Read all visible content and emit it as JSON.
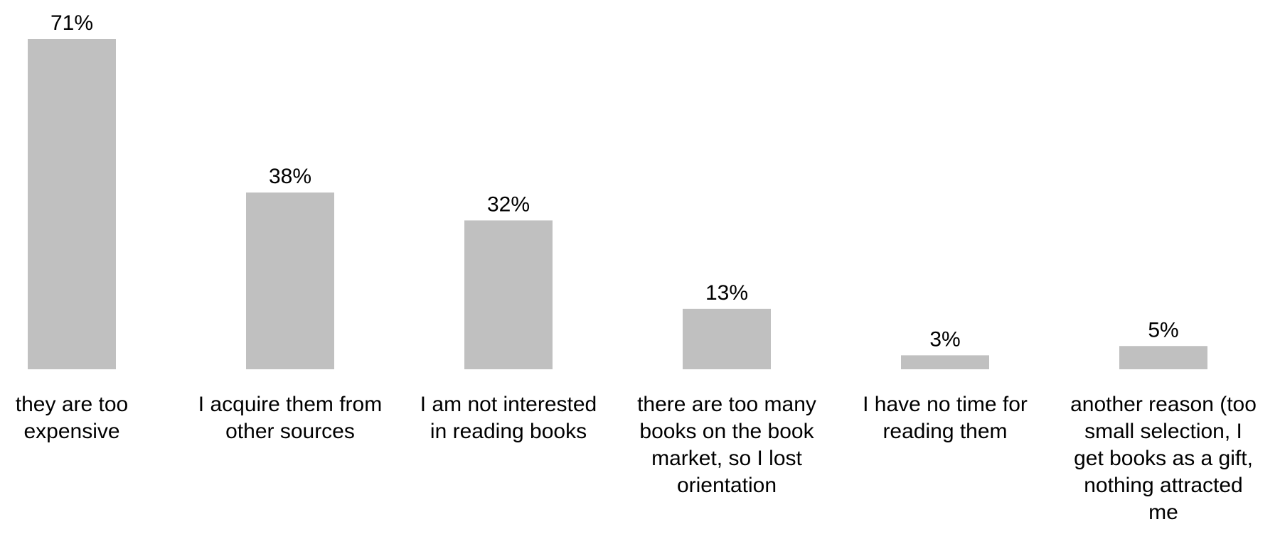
{
  "chart_data": {
    "type": "bar",
    "categories": [
      "they are too\nexpensive",
      "I acquire them from\nother sources",
      "I am not interested\nin reading books",
      "there are too many\nbooks on the book\nmarket, so I lost\norientation",
      "I have no time for\nreading them",
      "another reason (too\nsmall selection, I\nget books as a gift,\nnothing attracted\nme"
    ],
    "values": [
      71,
      38,
      32,
      13,
      3,
      5
    ],
    "data_labels": [
      "71%",
      "38%",
      "32%",
      "13%",
      "3%",
      "5%"
    ],
    "ylim": [
      0,
      71
    ],
    "grid": false,
    "legend": "none",
    "bar_color": "#c0c0c0"
  }
}
